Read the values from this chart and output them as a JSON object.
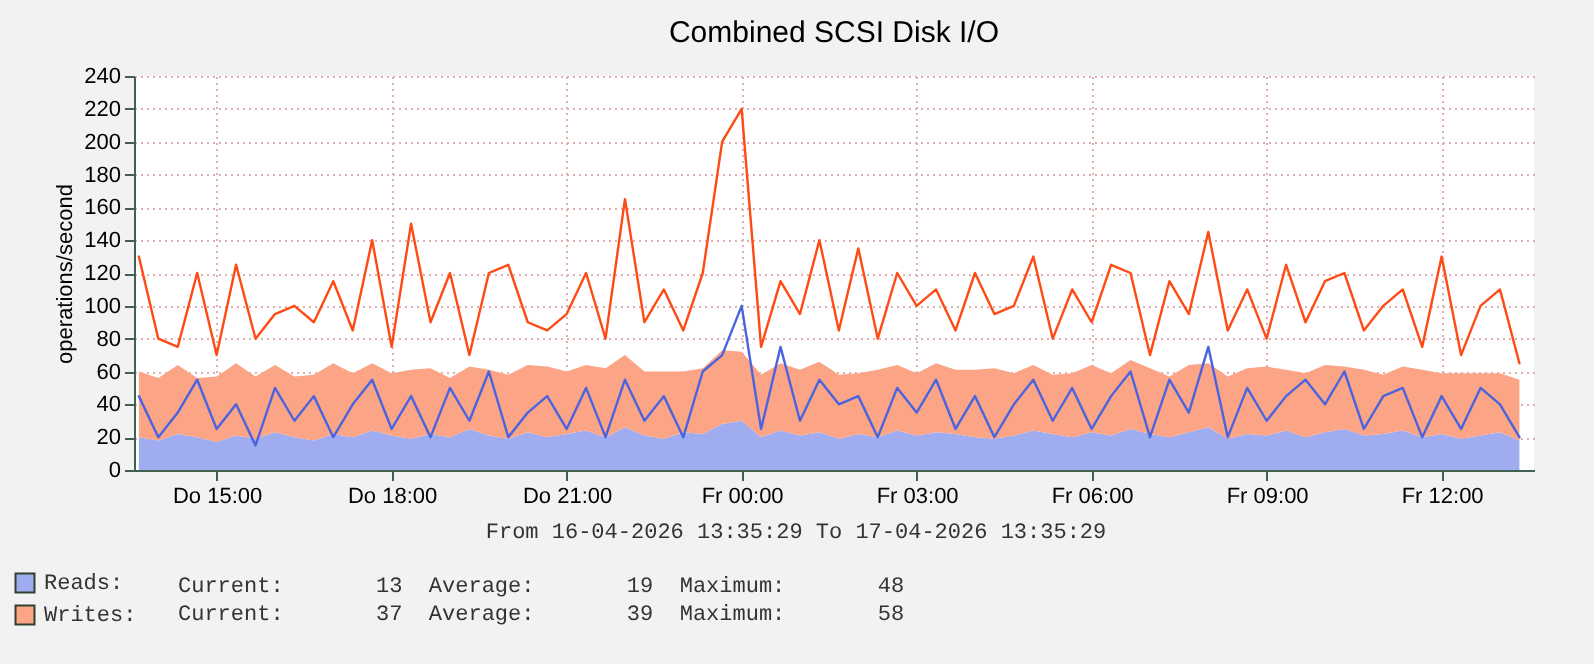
{
  "chart_data": {
    "type": "area",
    "title": "Combined SCSI Disk I/O",
    "ylabel": "operations/second",
    "annotations": [
      "From 16-04-2026 13:35:29 To 17-04-2026 13:35:29",
      "Current:       13  Average:       19  Maximum:       48",
      "Current:       37  Average:       39  Maximum:       58"
    ],
    "stacked": true,
    "grid": true,
    "legend": "bottom left",
    "xlim": [
      "2026-04-16T13:35",
      "2026-04-17T13:35"
    ],
    "xticks": [
      {
        "value": "2026-04-16T15:00",
        "label": "Do 15:00"
      },
      {
        "value": "2026-04-16T18:00",
        "label": "Do 18:00"
      },
      {
        "value": "2026-04-16T21:00",
        "label": "Do 21:00"
      },
      {
        "value": "2026-04-17T00:00",
        "label": "Fr 00:00"
      },
      {
        "value": "2026-04-17T03:00",
        "label": "Fr 03:00"
      },
      {
        "value": "2026-04-17T06:00",
        "label": "Fr 06:00"
      },
      {
        "value": "2026-04-17T09:00",
        "label": "Fr 09:00"
      },
      {
        "value": "2026-04-17T12:00",
        "label": "Fr 12:00"
      }
    ],
    "ylim": [
      0,
      240
    ],
    "yticks": [
      0,
      20,
      40,
      60,
      80,
      100,
      120,
      140,
      160,
      180,
      200,
      220,
      240
    ],
    "x": [
      "2026-04-16T13:40",
      "2026-04-16T14:00",
      "2026-04-16T14:20",
      "2026-04-16T14:40",
      "2026-04-16T15:00",
      "2026-04-16T15:20",
      "2026-04-16T15:40",
      "2026-04-16T16:00",
      "2026-04-16T16:20",
      "2026-04-16T16:40",
      "2026-04-16T17:00",
      "2026-04-16T17:20",
      "2026-04-16T17:40",
      "2026-04-16T18:00",
      "2026-04-16T18:20",
      "2026-04-16T18:40",
      "2026-04-16T19:00",
      "2026-04-16T19:20",
      "2026-04-16T19:40",
      "2026-04-16T20:00",
      "2026-04-16T20:20",
      "2026-04-16T20:40",
      "2026-04-16T21:00",
      "2026-04-16T21:20",
      "2026-04-16T21:40",
      "2026-04-16T22:00",
      "2026-04-16T22:20",
      "2026-04-16T22:40",
      "2026-04-16T23:00",
      "2026-04-16T23:20",
      "2026-04-16T23:40",
      "2026-04-17T00:00",
      "2026-04-17T00:20",
      "2026-04-17T00:40",
      "2026-04-17T01:00",
      "2026-04-17T01:20",
      "2026-04-17T01:40",
      "2026-04-17T02:00",
      "2026-04-17T02:20",
      "2026-04-17T02:40",
      "2026-04-17T03:00",
      "2026-04-17T03:20",
      "2026-04-17T03:40",
      "2026-04-17T04:00",
      "2026-04-17T04:20",
      "2026-04-17T04:40",
      "2026-04-17T05:00",
      "2026-04-17T05:20",
      "2026-04-17T05:40",
      "2026-04-17T06:00",
      "2026-04-17T06:20",
      "2026-04-17T06:40",
      "2026-04-17T07:00",
      "2026-04-17T07:20",
      "2026-04-17T07:40",
      "2026-04-17T08:00",
      "2026-04-17T08:20",
      "2026-04-17T08:40",
      "2026-04-17T09:00",
      "2026-04-17T09:20",
      "2026-04-17T09:40",
      "2026-04-17T10:00",
      "2026-04-17T10:20",
      "2026-04-17T10:40",
      "2026-04-17T11:00",
      "2026-04-17T11:20",
      "2026-04-17T11:40",
      "2026-04-17T12:00",
      "2026-04-17T12:20",
      "2026-04-17T12:40",
      "2026-04-17T13:00",
      "2026-04-17T13:20"
    ],
    "series": [
      {
        "name": "Reads:",
        "color": "#a0acf0",
        "values": [
          20,
          18,
          22,
          20,
          17,
          21,
          19,
          23,
          20,
          18,
          22,
          20,
          24,
          21,
          19,
          22,
          20,
          25,
          21,
          19,
          23,
          20,
          22,
          24,
          20,
          26,
          21,
          19,
          23,
          22,
          28,
          30,
          20,
          24,
          21,
          23,
          19,
          22,
          20,
          24,
          21,
          23,
          22,
          20,
          19,
          21,
          24,
          22,
          20,
          23,
          21,
          25,
          22,
          20,
          23,
          26,
          19,
          22,
          21,
          24,
          20,
          23,
          25,
          21,
          22,
          24,
          20,
          22,
          19,
          21,
          23,
          18
        ]
      },
      {
        "name": "Writes:",
        "color": "#fca486",
        "values": [
          40,
          38,
          42,
          36,
          40,
          44,
          38,
          41,
          37,
          40,
          43,
          39,
          41,
          38,
          42,
          40,
          36,
          38,
          40,
          39,
          41,
          43,
          38,
          40,
          42,
          44,
          39,
          41,
          37,
          40,
          45,
          42,
          38,
          41,
          40,
          43,
          39,
          37,
          41,
          40,
          38,
          42,
          39,
          41,
          43,
          38,
          40,
          36,
          39,
          41,
          38,
          42,
          40,
          37,
          41,
          39,
          38,
          40,
          42,
          37,
          39,
          41,
          38,
          40,
          36,
          39,
          41,
          37,
          40,
          38,
          36,
          37
        ]
      },
      {
        "type": "line",
        "color": "#4a64e0",
        "values": [
          45,
          20,
          35,
          55,
          25,
          40,
          15,
          50,
          30,
          45,
          20,
          40,
          55,
          25,
          45,
          20,
          50,
          30,
          60,
          20,
          35,
          45,
          25,
          50,
          20,
          55,
          30,
          45,
          20,
          60,
          70,
          100,
          25,
          75,
          30,
          55,
          40,
          45,
          20,
          50,
          35,
          55,
          25,
          45,
          20,
          40,
          55,
          30,
          50,
          25,
          45,
          60,
          20,
          55,
          35,
          75,
          20,
          50,
          30,
          45,
          55,
          40,
          60,
          25,
          45,
          50,
          20,
          45,
          25,
          50,
          40,
          20
        ]
      },
      {
        "type": "line",
        "color": "#ff4a14",
        "values": [
          130,
          80,
          75,
          120,
          70,
          125,
          80,
          95,
          100,
          90,
          115,
          85,
          140,
          75,
          150,
          90,
          120,
          70,
          120,
          125,
          90,
          85,
          95,
          120,
          80,
          165,
          90,
          110,
          85,
          120,
          200,
          220,
          75,
          115,
          95,
          140,
          85,
          135,
          80,
          120,
          100,
          110,
          85,
          120,
          95,
          100,
          130,
          80,
          110,
          90,
          125,
          120,
          70,
          115,
          95,
          145,
          85,
          110,
          80,
          125,
          90,
          115,
          120,
          85,
          100,
          110,
          75,
          130,
          70,
          100,
          110,
          65
        ]
      }
    ]
  }
}
